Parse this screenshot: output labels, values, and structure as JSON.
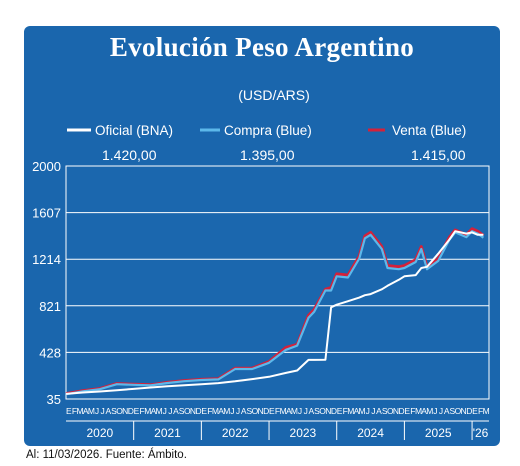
{
  "title": "Evolución Peso Argentino",
  "footer": "Al: 11/03/2026. Fuente: Ámbito.",
  "colors": {
    "frame": "#1a66ad",
    "plot_bg": "#1b67ae",
    "oficial": "#ffffff",
    "compra": "#5cb8ea",
    "venta": "#d4213a"
  },
  "chart_data": {
    "type": "line",
    "title": "Evolución Peso Argentino",
    "subtitle": "(USD/ARS)",
    "xlabel": "",
    "ylabel": "",
    "ylim": [
      35,
      2000
    ],
    "yticks": [
      35,
      428,
      821,
      1214,
      1607,
      2000
    ],
    "ytick_labels": [
      "35",
      "428",
      "821",
      "1214",
      "1607",
      "2000"
    ],
    "x": [
      "2020-01",
      "2020-04",
      "2020-07",
      "2020-10",
      "2021-01",
      "2021-04",
      "2021-07",
      "2021-10",
      "2022-01",
      "2022-04",
      "2022-07",
      "2022-10",
      "2023-01",
      "2023-04",
      "2023-06",
      "2023-08",
      "2023-09",
      "2023-11",
      "2023-12",
      "2024-01",
      "2024-03",
      "2024-05",
      "2024-06",
      "2024-07",
      "2024-09",
      "2024-10",
      "2024-12",
      "2025-01",
      "2025-03",
      "2025-04",
      "2025-05",
      "2025-07",
      "2025-09",
      "2025-10",
      "2025-12",
      "2026-01",
      "2026-02",
      "2026-03"
    ],
    "year_labels": [
      "2020",
      "2021",
      "2022",
      "2023",
      "2024",
      "2025",
      "'26"
    ],
    "month_labels": [
      "E",
      "F",
      "M",
      "A",
      "M",
      "J",
      "J",
      "A",
      "S",
      "O",
      "N",
      "D"
    ],
    "grid": true,
    "legend_position": "top",
    "series": [
      {
        "name": "Oficial (BNA)",
        "last_value_label": "1.420,00",
        "values": [
          78,
          90,
          98,
          109,
          120,
          132,
          142,
          151,
          159,
          169,
          184,
          203,
          222,
          255,
          275,
          365,
          365,
          366,
          808,
          830,
          860,
          890,
          910,
          920,
          960,
          990,
          1040,
          1070,
          1080,
          1140,
          1150,
          1260,
          1380,
          1450,
          1430,
          1440,
          1420,
          1420
        ]
      },
      {
        "name": "Compra (Blue)",
        "last_value_label": "1.395,00",
        "values": [
          75,
          100,
          118,
          160,
          155,
          150,
          170,
          185,
          195,
          200,
          288,
          288,
          340,
          450,
          485,
          720,
          770,
          950,
          950,
          1070,
          1060,
          1220,
          1390,
          1420,
          1300,
          1140,
          1130,
          1140,
          1190,
          1300,
          1130,
          1200,
          1380,
          1440,
          1400,
          1450,
          1430,
          1395
        ]
      },
      {
        "name": "Venta (Blue)",
        "last_value_label": "1.415,00",
        "values": [
          80,
          105,
          123,
          165,
          160,
          155,
          175,
          190,
          200,
          205,
          295,
          295,
          350,
          470,
          495,
          740,
          790,
          960,
          975,
          1090,
          1080,
          1240,
          1410,
          1440,
          1320,
          1160,
          1150,
          1160,
          1210,
          1320,
          1150,
          1220,
          1400,
          1460,
          1420,
          1470,
          1450,
          1415
        ]
      }
    ]
  }
}
